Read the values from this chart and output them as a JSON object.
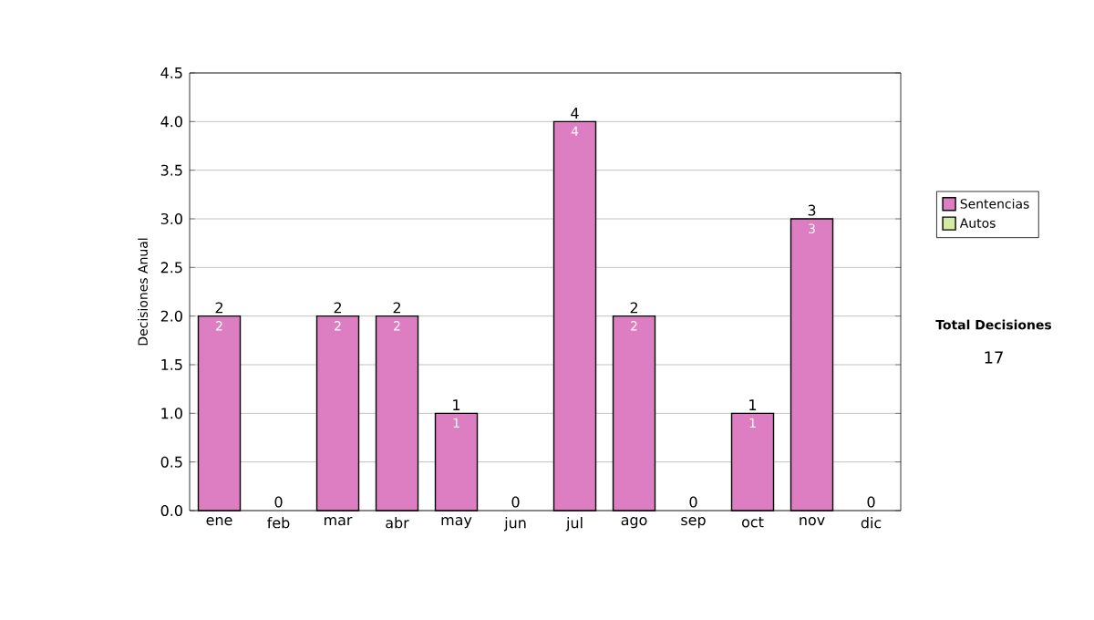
{
  "chart_data": {
    "type": "bar",
    "stacked": true,
    "ylabel": "Decisiones Anual",
    "categories": [
      "ene",
      "feb",
      "mar",
      "abr",
      "may",
      "jun",
      "jul",
      "ago",
      "sep",
      "oct",
      "nov",
      "dic"
    ],
    "series": [
      {
        "name": "Sentencias",
        "color": "#dd7ec2",
        "values": [
          2,
          0,
          2,
          2,
          1,
          0,
          4,
          2,
          0,
          1,
          3,
          0
        ],
        "value_labels": [
          "2",
          null,
          "2",
          "2",
          "1",
          null,
          "4",
          "2",
          null,
          "1",
          "3",
          null
        ]
      },
      {
        "name": "Autos",
        "color": "#d6eaa2",
        "values": [
          0,
          0,
          0,
          0,
          0,
          0,
          0,
          0,
          0,
          0,
          0,
          0
        ]
      }
    ],
    "totals": [
      "2",
      "0",
      "2",
      "2",
      "1",
      "0",
      "4",
      "2",
      "0",
      "1",
      "3",
      "0"
    ],
    "ylim": [
      0,
      4.5
    ],
    "yticks": [
      {
        "value": 0,
        "label": "0.0"
      },
      0.5,
      {
        "value": 1,
        "label": "1.0"
      },
      1.5,
      {
        "value": 2,
        "label": "2.0"
      },
      2.5,
      {
        "value": 3,
        "label": "3.0"
      },
      3.5,
      {
        "value": 4,
        "label": "4.0"
      },
      4.5
    ],
    "grid": "y",
    "legend": "right",
    "annotations": [
      "Total Decisiones",
      "17"
    ]
  }
}
